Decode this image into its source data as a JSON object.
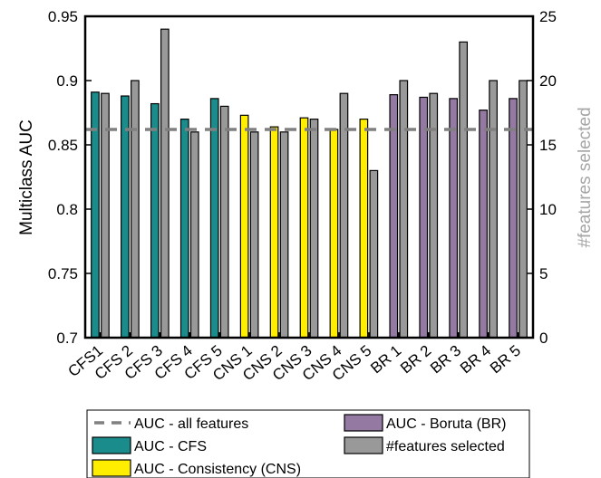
{
  "chart_data": {
    "type": "bar",
    "categories": [
      "CFS1",
      "CFS 2",
      "CFS 3",
      "CFS 4",
      "CFS 5",
      "CNS 1",
      "CNS 2",
      "CNS 3",
      "CNS 4",
      "CNS 5",
      "BR 1",
      "BR 2",
      "BR 3",
      "BR 4",
      "BR 5"
    ],
    "ylabel": "Multiclass AUC",
    "ylabel_right": "#features selected",
    "ylim": [
      0.7,
      0.95
    ],
    "yticks": [
      "0.7",
      "0.75",
      "0.8",
      "0.85",
      "0.9",
      "0.95"
    ],
    "ylim_right": [
      0,
      25
    ],
    "yticks_right": [
      "0",
      "5",
      "10",
      "15",
      "20",
      "25"
    ],
    "baseline": {
      "name": "AUC - all features",
      "value": 0.862,
      "color": "#808080"
    },
    "series": [
      {
        "name": "AUC - CFS",
        "axis": "left",
        "color": "#1a8c8c",
        "points": [
          {
            "category": "CFS1",
            "value": 0.891
          },
          {
            "category": "CFS 2",
            "value": 0.888
          },
          {
            "category": "CFS 3",
            "value": 0.882
          },
          {
            "category": "CFS 4",
            "value": 0.87
          },
          {
            "category": "CFS 5",
            "value": 0.886
          }
        ]
      },
      {
        "name": "AUC - Consistency (CNS)",
        "axis": "left",
        "color": "#ffee00",
        "points": [
          {
            "category": "CNS 1",
            "value": 0.873
          },
          {
            "category": "CNS 2",
            "value": 0.864
          },
          {
            "category": "CNS 3",
            "value": 0.871
          },
          {
            "category": "CNS 4",
            "value": 0.862
          },
          {
            "category": "CNS 5",
            "value": 0.87
          }
        ]
      },
      {
        "name": "AUC - Boruta (BR)",
        "axis": "left",
        "color": "#9479a3",
        "points": [
          {
            "category": "BR 1",
            "value": 0.889
          },
          {
            "category": "BR 2",
            "value": 0.887
          },
          {
            "category": "BR 3",
            "value": 0.886
          },
          {
            "category": "BR 4",
            "value": 0.877
          },
          {
            "category": "BR 5",
            "value": 0.886
          }
        ]
      },
      {
        "name": "#features selected",
        "axis": "right",
        "color": "#999999",
        "values": [
          19,
          20,
          24,
          16,
          18,
          16,
          16,
          17,
          19,
          13,
          20,
          19,
          23,
          20,
          20
        ]
      }
    ],
    "legend_order": [
      "AUC - all features",
      "AUC - Boruta (BR)",
      "AUC - CFS",
      "#features selected",
      "AUC - Consistency (CNS)"
    ],
    "legend_position": "bottom",
    "grid": false
  }
}
